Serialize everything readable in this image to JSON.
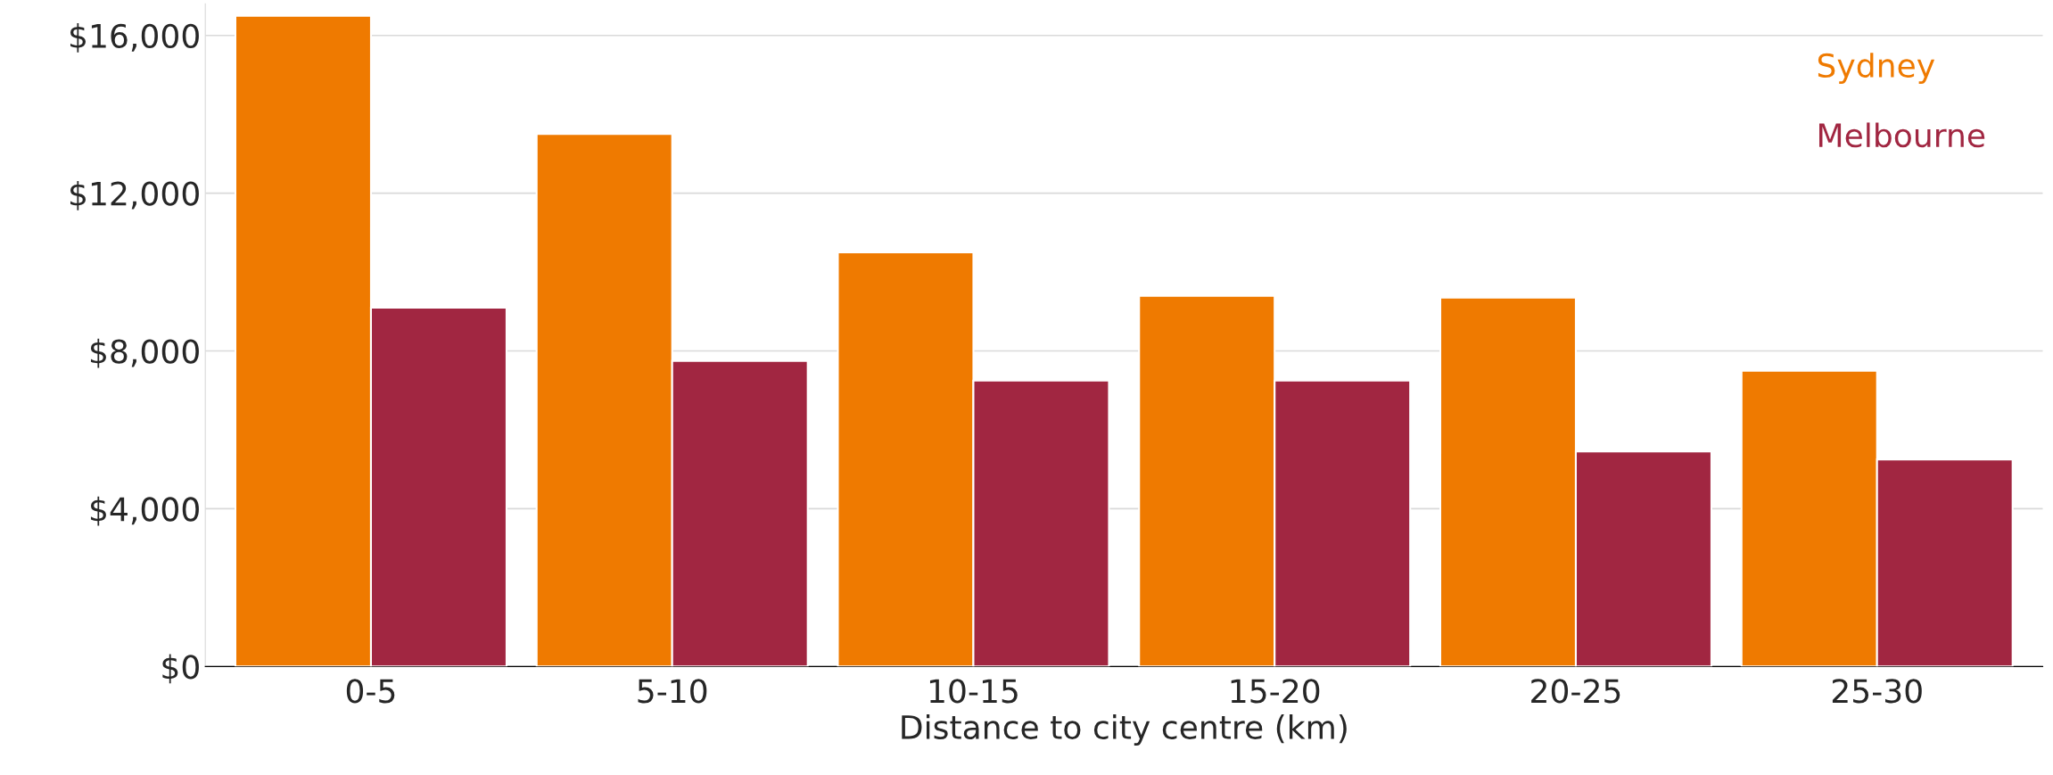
{
  "chart_data": {
    "type": "bar",
    "xlabel": "Distance to city centre (km)",
    "categories": [
      "0-5",
      "5-10",
      "10-15",
      "15-20",
      "20-25",
      "25-30"
    ],
    "series": [
      {
        "name": "Sydney",
        "color": "#ef7a00",
        "values": [
          16500,
          13500,
          10500,
          9400,
          9350,
          7500
        ]
      },
      {
        "name": "Melbourne",
        "color": "#a12641",
        "values": [
          9100,
          7750,
          7250,
          7250,
          5450,
          5250
        ]
      }
    ],
    "ylim": [
      0,
      16800
    ],
    "yticks": [
      {
        "value": 0,
        "label": "$0"
      },
      {
        "value": 4000,
        "label": "$4,000"
      },
      {
        "value": 8000,
        "label": "$8,000"
      },
      {
        "value": 12000,
        "label": "$12,000"
      },
      {
        "value": 16000,
        "label": "$16,000"
      }
    ],
    "grid": "y",
    "legend": "top right"
  }
}
